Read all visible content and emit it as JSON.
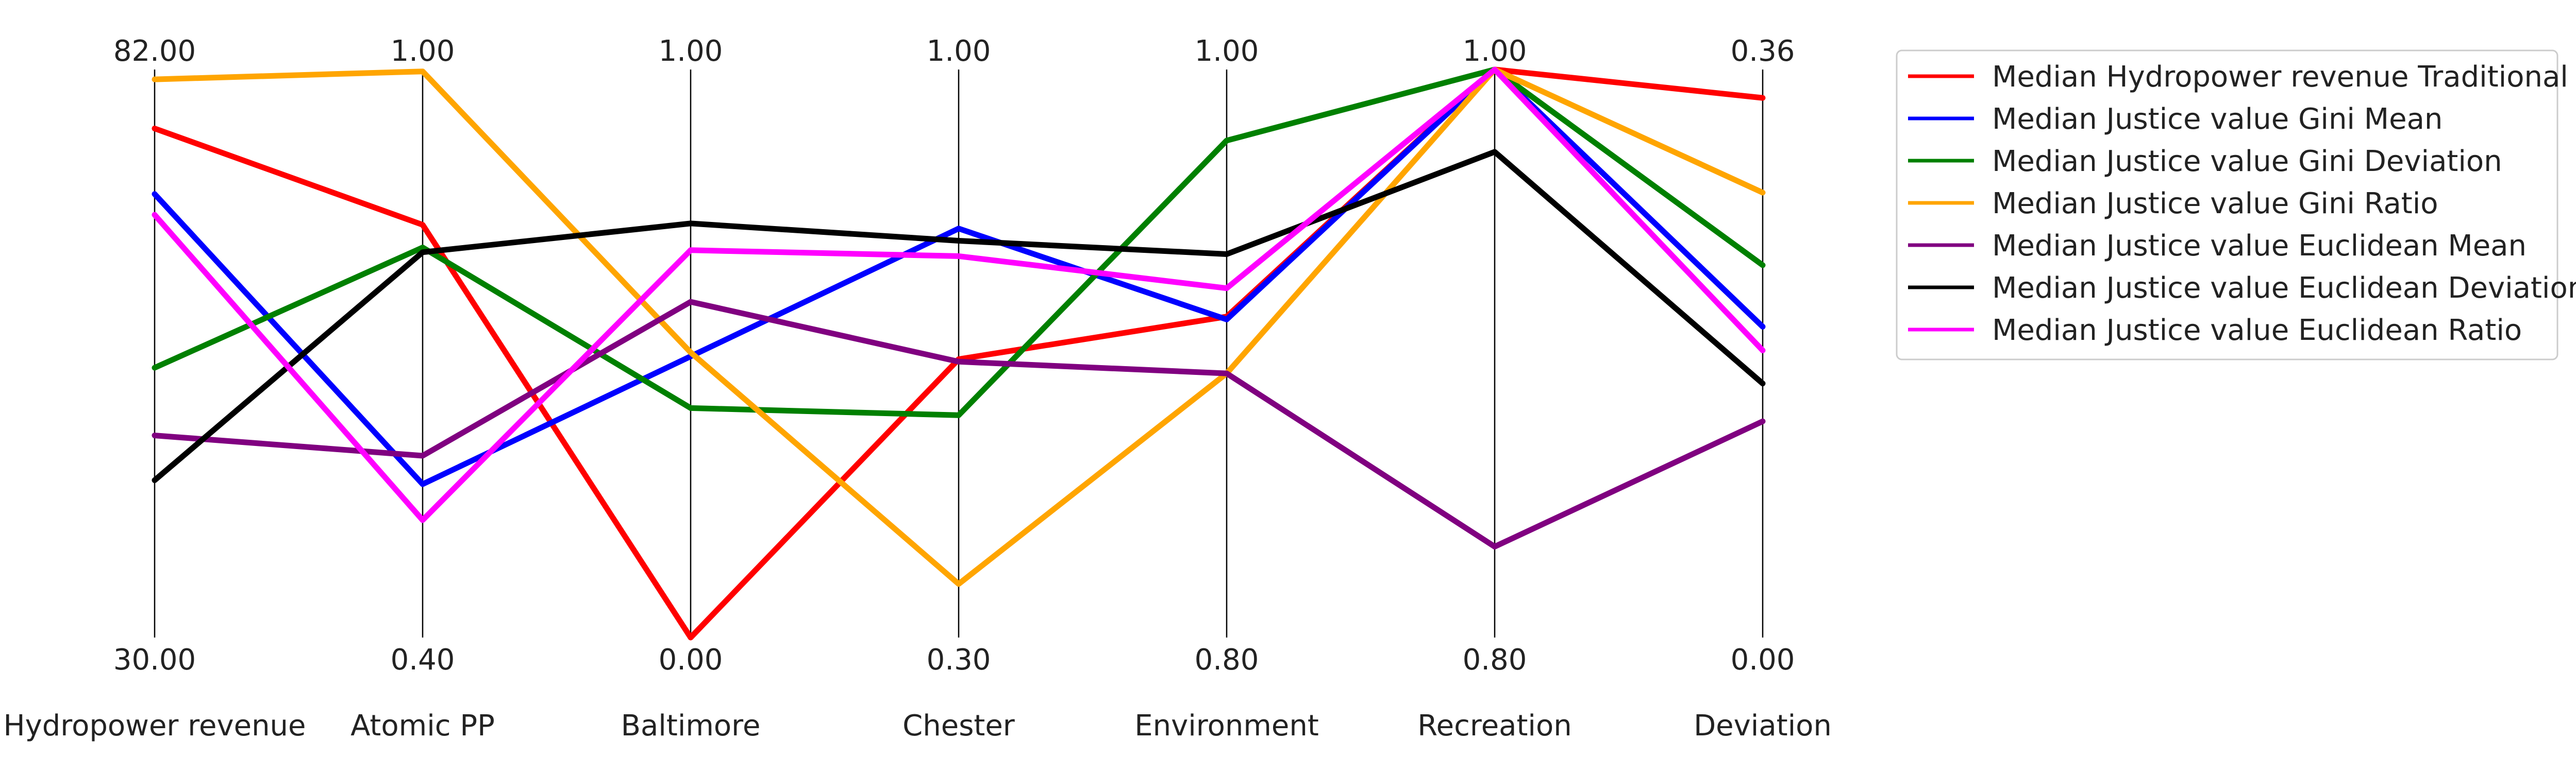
{
  "chart_data": {
    "type": "parallel-coordinates",
    "axes": [
      {
        "name": "Hydropower revenue",
        "max_label": "82.00",
        "min_label": "30.00",
        "min": 30,
        "max": 82
      },
      {
        "name": "Atomic PP",
        "max_label": "1.00",
        "min_label": "0.40",
        "min": 0.4,
        "max": 1.0
      },
      {
        "name": "Baltimore",
        "max_label": "1.00",
        "min_label": "0.00",
        "min": 0.0,
        "max": 1.0
      },
      {
        "name": "Chester",
        "max_label": "1.00",
        "min_label": "0.30",
        "min": 0.3,
        "max": 1.0
      },
      {
        "name": "Environment",
        "max_label": "1.00",
        "min_label": "0.80",
        "min": 0.8,
        "max": 1.0
      },
      {
        "name": "Recreation",
        "max_label": "1.00",
        "min_label": "0.80",
        "min": 0.8,
        "max": 1.0
      },
      {
        "name": "Deviation",
        "max_label": "0.36",
        "min_label": "0.00",
        "min": 0.0,
        "max": 0.36
      }
    ],
    "series": [
      {
        "name": "Median Hydropower revenue Traditional",
        "color": "#ff0000",
        "values": [
          76.6,
          0.836,
          0.0,
          0.643,
          0.913,
          1.0,
          0.342
        ]
      },
      {
        "name": "Median Justice value Gini Mean",
        "color": "#0000ff",
        "values": [
          70.6,
          0.562,
          0.495,
          0.804,
          0.912,
          1.0,
          0.197
        ]
      },
      {
        "name": "Median Justice value Gini Deviation",
        "color": "#008000",
        "values": [
          54.7,
          0.812,
          0.404,
          0.574,
          0.975,
          1.0,
          0.236
        ]
      },
      {
        "name": "Median Justice value Gini Ratio",
        "color": "#ffa500",
        "values": [
          81.1,
          0.998,
          0.502,
          0.366,
          0.893,
          1.0,
          0.282
        ]
      },
      {
        "name": "Median Justice value Euclidean Mean",
        "color": "#800080",
        "values": [
          48.5,
          0.592,
          0.591,
          0.64,
          0.893,
          0.832,
          0.137
        ]
      },
      {
        "name": "Median Justice value Euclidean Deviation",
        "color": "#000000",
        "values": [
          44.4,
          0.807,
          0.729,
          0.789,
          0.935,
          0.971,
          0.161
        ]
      },
      {
        "name": "Median Justice value Euclidean Ratio",
        "color": "#ff00ff",
        "values": [
          68.7,
          0.524,
          0.682,
          0.77,
          0.923,
          1.0,
          0.182
        ]
      }
    ],
    "legend_position": "top-right",
    "grid": false
  }
}
